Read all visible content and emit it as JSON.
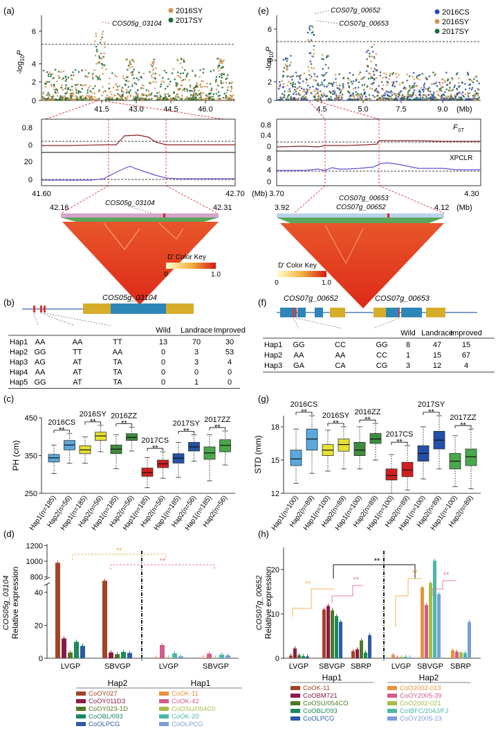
{
  "panels": {
    "a": "(a)",
    "b": "(b)",
    "c": "(c)",
    "d": "(d)",
    "e": "(e)",
    "f": "(f)",
    "g": "(g)",
    "h": "(h)"
  },
  "a": {
    "gene": "COS05g_03104",
    "legend": [
      "2016SY",
      "2017SY"
    ],
    "colors": [
      "#d4914b",
      "#1e6b3a"
    ],
    "yticks": [
      "0",
      "2",
      "4",
      "6"
    ],
    "xticks": [
      "41.5",
      "43.0",
      "44.5",
      "46.0"
    ],
    "ylabel": "-log",
    "ysub": "10",
    "yP": "P",
    "zoom_xticks": [
      "41.60",
      "42.70"
    ],
    "zoom_unit": "(Mb)",
    "fst_ticks": [
      "0.8",
      "0"
    ],
    "xpclr_ticks": [
      "20",
      "0"
    ],
    "ld_left": "42.16",
    "ld_right": "42.31",
    "ld_gene": "COS05g_03104",
    "key_title": "D' Color Key",
    "key_min": "0",
    "key_max": "1.0"
  },
  "e": {
    "genes": [
      "COS07g_00652",
      "COS07g_00653"
    ],
    "legend": [
      "2016CS",
      "2016SY",
      "2017SY"
    ],
    "colors": [
      "#2a46b8",
      "#d4914b",
      "#1e6b3a"
    ],
    "yticks": [
      "0",
      "2",
      "4",
      "6"
    ],
    "xticks": [
      "4.5",
      "5.0",
      "7.5",
      "9.0"
    ],
    "xunit": "(Mb)",
    "fst_label": "F",
    "fst_sub": "ST",
    "xpclr_label": "XPCLR",
    "fst_ticks": [
      "0.8",
      "0.4",
      "0"
    ],
    "xpclr_ticks": [
      "8",
      "4",
      "0"
    ],
    "zoom_xticks": [
      "3.70",
      "4.30"
    ],
    "zoom_unit": "(Mb)",
    "ld_left": "3.92",
    "ld_right": "4.12",
    "ld_unit": "(Mb)",
    "ld_genes": [
      "COS07g_00653",
      "COS07g_00652"
    ],
    "key_title": "D' Color Key",
    "key_min": "0",
    "key_max": "1.0"
  },
  "b": {
    "gene": "COS05g_03104",
    "headers": [
      "Wild",
      "Landrace",
      "Improved"
    ],
    "rows": [
      {
        "hap": "Hap1",
        "g": [
          "AA",
          "AA",
          "TT"
        ],
        "n": [
          "13",
          "70",
          "30"
        ]
      },
      {
        "hap": "Hap2",
        "g": [
          "GG",
          "TT",
          "AA"
        ],
        "n": [
          "0",
          "3",
          "53"
        ]
      },
      {
        "hap": "Hap3",
        "g": [
          "AG",
          "AT",
          "TA"
        ],
        "n": [
          "0",
          "3",
          "4"
        ]
      },
      {
        "hap": "Hap4",
        "g": [
          "AA",
          "AT",
          "TA"
        ],
        "n": [
          "0",
          "0",
          "0"
        ]
      },
      {
        "hap": "Hap5",
        "g": [
          "GG",
          "AT",
          "TA"
        ],
        "n": [
          "0",
          "1",
          "0"
        ]
      }
    ]
  },
  "f": {
    "genes": [
      "COS07g_00652",
      "COS07g_00653"
    ],
    "headers": [
      "Wild",
      "Landrace",
      "Improved"
    ],
    "rows": [
      {
        "hap": "Hap1",
        "g": [
          "GG",
          "CC",
          "GG"
        ],
        "n": [
          "8",
          "47",
          "15"
        ]
      },
      {
        "hap": "Hap2",
        "g": [
          "AA",
          "AA",
          "CC"
        ],
        "n": [
          "1",
          "15",
          "67"
        ]
      },
      {
        "hap": "Hap3",
        "g": [
          "GA",
          "CA",
          "CG"
        ],
        "n": [
          "3",
          "12",
          "4"
        ]
      }
    ]
  },
  "chart_data": [
    {
      "type": "box",
      "panel": "c",
      "ylabel": "PH (cm)",
      "ylim": [
        250,
        450
      ],
      "yticks": [
        "250",
        "350",
        "450"
      ],
      "groups": [
        "2016CS",
        "2016SY",
        "2016ZZ",
        "2017CS",
        "2017SY",
        "2017ZZ"
      ],
      "categories": [
        "Hap1(n=185)",
        "Hap2(n=56)",
        "Hap1(n=185)",
        "Hap2(n=56)",
        "Hap1(n=185)",
        "Hap2(n=56)",
        "Hap1(n=185)",
        "Hap2(n=56)",
        "Hap1(n=185)",
        "Hap2(n=56)",
        "Hap1(n=185)",
        "Hap2(n=56)"
      ],
      "signif": "**",
      "colors": [
        "#5aa9dd",
        "#5aa9dd",
        "#e6e033",
        "#e6e033",
        "#3d8c3d",
        "#3d8c3d",
        "#d11f1f",
        "#d11f1f",
        "#2350a8",
        "#2350a8",
        "#4aa84a",
        "#4aa84a"
      ],
      "boxes": [
        {
          "min": 302,
          "q1": 333,
          "med": 344,
          "q3": 353,
          "max": 378
        },
        {
          "min": 330,
          "q1": 365,
          "med": 378,
          "q3": 390,
          "max": 408
        },
        {
          "min": 330,
          "q1": 355,
          "med": 365,
          "q3": 376,
          "max": 400
        },
        {
          "min": 360,
          "q1": 390,
          "med": 402,
          "q3": 412,
          "max": 430
        },
        {
          "min": 315,
          "q1": 355,
          "med": 367,
          "q3": 378,
          "max": 405
        },
        {
          "min": 362,
          "q1": 390,
          "med": 398,
          "q3": 408,
          "max": 425
        },
        {
          "min": 265,
          "q1": 295,
          "med": 305,
          "q3": 317,
          "max": 345
        },
        {
          "min": 290,
          "q1": 318,
          "med": 328,
          "q3": 338,
          "max": 360
        },
        {
          "min": 292,
          "q1": 330,
          "med": 343,
          "q3": 355,
          "max": 385
        },
        {
          "min": 335,
          "q1": 362,
          "med": 373,
          "q3": 385,
          "max": 405
        },
        {
          "min": 283,
          "q1": 340,
          "med": 357,
          "q3": 373,
          "max": 405
        },
        {
          "min": 325,
          "q1": 360,
          "med": 377,
          "q3": 392,
          "max": 415
        }
      ]
    },
    {
      "type": "box",
      "panel": "g",
      "ylabel": "STD (mm)",
      "ylim": [
        12,
        19
      ],
      "yticks": [
        "12",
        "15",
        "18"
      ],
      "groups": [
        "2016CS",
        "2016SY",
        "2016ZZ",
        "2017CS",
        "2017SY",
        "2017ZZ"
      ],
      "categories": [
        "Hap1(n=100)",
        "Hap2(n=89)",
        "Hap1(n=100)",
        "Hap2(n=89)",
        "Hap1(n=100)",
        "Hap2(n=89)",
        "Hap1(n=100)",
        "Hap2(n=89)",
        "Hap1(n=100)",
        "Hap2(n=89)",
        "Hap1(n=100)",
        "Hap2(n=89)"
      ],
      "signif": "**",
      "colors": [
        "#5aa9dd",
        "#5aa9dd",
        "#e6e033",
        "#e6e033",
        "#3d8c3d",
        "#3d8c3d",
        "#d11f1f",
        "#d11f1f",
        "#2350a8",
        "#2350a8",
        "#4aa84a",
        "#4aa84a"
      ],
      "boxes": [
        {
          "min": 12.9,
          "q1": 14.5,
          "med": 15.1,
          "q3": 15.9,
          "max": 17.8
        },
        {
          "min": 13.8,
          "q1": 15.9,
          "med": 16.9,
          "q3": 17.8,
          "max": 19.0
        },
        {
          "min": 14.0,
          "q1": 15.4,
          "med": 15.9,
          "q3": 16.4,
          "max": 17.7
        },
        {
          "min": 14.2,
          "q1": 15.8,
          "med": 16.4,
          "q3": 16.9,
          "max": 18.0
        },
        {
          "min": 14.2,
          "q1": 15.4,
          "med": 15.9,
          "q3": 16.6,
          "max": 18.0
        },
        {
          "min": 15.0,
          "q1": 16.5,
          "med": 16.9,
          "q3": 17.4,
          "max": 18.3
        },
        {
          "min": 12.0,
          "q1": 13.2,
          "med": 13.6,
          "q3": 14.2,
          "max": 15.5
        },
        {
          "min": 12.3,
          "q1": 13.5,
          "med": 14.1,
          "q3": 14.8,
          "max": 16.3
        },
        {
          "min": 13.3,
          "q1": 14.9,
          "med": 15.6,
          "q3": 16.3,
          "max": 18.0
        },
        {
          "min": 14.2,
          "q1": 16.0,
          "med": 16.8,
          "q3": 17.6,
          "max": 19.0
        },
        {
          "min": 12.6,
          "q1": 14.2,
          "med": 14.9,
          "q3": 15.6,
          "max": 17.2
        },
        {
          "min": 12.4,
          "q1": 14.5,
          "med": 15.3,
          "q3": 16.0,
          "max": 17.8
        }
      ]
    },
    {
      "type": "bar",
      "panel": "d",
      "ylabel": "Relative expression",
      "ygene": "COS05g_03104",
      "yticks_top": [
        "800",
        "1000",
        "1200"
      ],
      "yticks_bottom": [
        "0",
        "20",
        "40"
      ],
      "tissues": [
        "LVGP",
        "SBVGP",
        "LVGP",
        "SBVGP"
      ],
      "hap_labels": [
        "Hap2",
        "Hap1"
      ],
      "signif": "**",
      "series_colors": [
        "#a24527",
        "#8b1a4a",
        "#4b7a22",
        "#1a8a5e",
        "#2c5aa3"
      ],
      "series_colors_hap1": [
        "#e8923e",
        "#d45b8c",
        "#a7bb4a",
        "#4ab8a8",
        "#7b9ed8"
      ],
      "hap2_values": [
        [
          980,
          12,
          3.5,
          10,
          7.5
        ],
        [
          120,
          3.5,
          2.5,
          3.8,
          3.2
        ]
      ],
      "hap1_values": [
        [
          0.3,
          8,
          0.3,
          3,
          1.2
        ],
        [
          0.3,
          2.8,
          0.3,
          2.2,
          1.8
        ]
      ],
      "legend_hap2": [
        "CoOY027",
        "CoOY011D3",
        "CoOY023-1D",
        "CoOBL/093",
        "CoOLPCG"
      ],
      "legend_hap1": [
        "CoOK-11",
        "CoOK-42",
        "CoOSU/054C0",
        "CoOK-20",
        "CoOLPCG"
      ]
    },
    {
      "type": "bar",
      "panel": "h",
      "ylabel": "Relative expression",
      "ygene": "COS07g_00652",
      "yticks": [
        "0",
        "10",
        "20"
      ],
      "ylim": [
        0,
        25
      ],
      "tissues": [
        "LVGP",
        "SBVGP",
        "SBRP",
        "LVGP",
        "SBVGP",
        "SBRP"
      ],
      "hap_labels": [
        "Hap1",
        "Hap2"
      ],
      "signif": "**",
      "series_colors": [
        "#a24527",
        "#8b1a4a",
        "#4b7a22",
        "#1a8a5e",
        "#2c5aa3"
      ],
      "series_colors_hap2": [
        "#e8923e",
        "#d45b8c",
        "#a7bb4a",
        "#4ab8a8",
        "#7b9ed8"
      ],
      "hap1_values": [
        [
          0.6,
          2.2,
          0.7,
          0.5,
          0.4
        ],
        [
          11,
          11.8,
          10.8,
          9.5,
          8.2
        ],
        [
          1.6,
          2,
          4,
          1.3,
          5.2
        ]
      ],
      "hap2_values": [
        [
          0.8,
          0.2,
          0.3,
          0.3,
          0.2
        ],
        [
          16,
          12,
          17,
          22,
          14.5
        ],
        [
          1.8,
          1.5,
          1.3,
          1.2,
          8.2
        ]
      ],
      "legend_hap1": [
        "CoOK-11",
        "CoOBM721",
        "CoOSU/054CO",
        "CoOBL/093",
        "CoOLPCG"
      ],
      "legend_hap2": [
        "CoO2002-013",
        "CoOY2005-39",
        "CoO2002-021",
        "CoIBFC/204J/FJ",
        "CoOY2005-23"
      ]
    }
  ]
}
